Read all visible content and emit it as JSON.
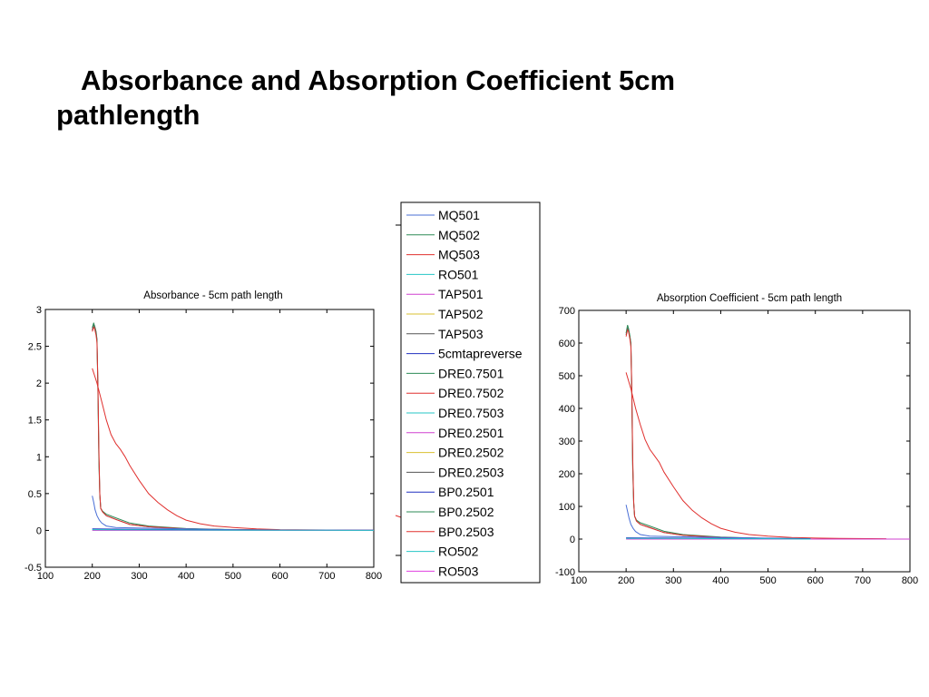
{
  "slide": {
    "title": "Absorbance and Absorption Coefficient 5cm pathlength"
  },
  "legend": {
    "entries": [
      {
        "name": "MQ501",
        "color": "#4a6fd6"
      },
      {
        "name": "MQ502",
        "color": "#2e8b57"
      },
      {
        "name": "MQ503",
        "color": "#e0302e"
      },
      {
        "name": "RO501",
        "color": "#26c6c6"
      },
      {
        "name": "TAP501",
        "color": "#d040d0"
      },
      {
        "name": "TAP502",
        "color": "#d9c030"
      },
      {
        "name": "TAP503",
        "color": "#555555"
      },
      {
        "name": "5cmtapreverse",
        "color": "#2030c0"
      },
      {
        "name": "DRE0.7501",
        "color": "#2e8b57"
      },
      {
        "name": "DRE0.7502",
        "color": "#e0302e"
      },
      {
        "name": "DRE0.7503",
        "color": "#26c6c6"
      },
      {
        "name": "DRE0.2501",
        "color": "#d040d0"
      },
      {
        "name": "DRE0.2502",
        "color": "#d9c030"
      },
      {
        "name": "DRE0.2503",
        "color": "#555555"
      },
      {
        "name": "BP0.2501",
        "color": "#2030c0"
      },
      {
        "name": "BP0.2502",
        "color": "#2e8b57"
      },
      {
        "name": "BP0.2503",
        "color": "#e0302e"
      },
      {
        "name": "RO502",
        "color": "#26c6c6"
      },
      {
        "name": "RO503",
        "color": "#e040e0"
      }
    ]
  },
  "chart_data": [
    {
      "type": "line",
      "title": "Absorbance - 5cm path length",
      "xlabel": "",
      "ylabel": "",
      "xlim": [
        100,
        800
      ],
      "ylim": [
        -0.5,
        3
      ],
      "xticks": [
        "100",
        "200",
        "300",
        "400",
        "500",
        "600",
        "700",
        "800"
      ],
      "yticks": [
        "-0.5",
        "0",
        "0.5",
        "1",
        "1.5",
        "2",
        "2.5",
        "3"
      ],
      "xtick_values": [
        100,
        200,
        300,
        400,
        500,
        600,
        700,
        800
      ],
      "ytick_values": [
        -0.5,
        0,
        0.5,
        1,
        1.5,
        2,
        2.5,
        3
      ],
      "grid": false,
      "series": [
        {
          "color": "#555555",
          "x": [
            200,
            203,
            205,
            208,
            210,
            212,
            214,
            216,
            218,
            222,
            230,
            250,
            280,
            320,
            400,
            500,
            600,
            700,
            800
          ],
          "y": [
            2.72,
            2.8,
            2.78,
            2.7,
            2.6,
            2.0,
            1.0,
            0.5,
            0.3,
            0.25,
            0.2,
            0.15,
            0.08,
            0.05,
            0.02,
            0.01,
            0.005,
            0.002,
            0.0
          ]
        },
        {
          "color": "#2e8b57",
          "x": [
            200,
            203,
            205,
            208,
            210,
            212,
            214,
            216,
            218,
            222,
            230,
            250,
            280,
            320,
            400,
            500,
            600,
            700,
            800
          ],
          "y": [
            2.75,
            2.82,
            2.76,
            2.68,
            2.58,
            1.9,
            0.95,
            0.48,
            0.3,
            0.26,
            0.22,
            0.17,
            0.1,
            0.06,
            0.025,
            0.01,
            0.005,
            0.002,
            0.0
          ]
        },
        {
          "color": "#e0302e",
          "x": [
            200,
            203,
            205,
            208,
            210,
            212,
            214,
            216,
            218,
            222,
            230,
            250,
            280,
            320,
            400,
            500,
            600,
            700,
            800
          ],
          "y": [
            2.7,
            2.76,
            2.74,
            2.65,
            2.55,
            2.0,
            1.1,
            0.5,
            0.3,
            0.25,
            0.2,
            0.15,
            0.08,
            0.05,
            0.02,
            0.01,
            0.005,
            0.002,
            0.0
          ]
        },
        {
          "color": "#e0302e",
          "x": [
            200,
            210,
            220,
            230,
            240,
            250,
            260,
            270,
            280,
            300,
            320,
            340,
            360,
            380,
            400,
            430,
            460,
            500,
            550,
            600,
            700,
            800
          ],
          "y": [
            2.2,
            2.0,
            1.75,
            1.5,
            1.3,
            1.18,
            1.1,
            1.0,
            0.88,
            0.68,
            0.5,
            0.38,
            0.28,
            0.2,
            0.14,
            0.09,
            0.06,
            0.04,
            0.02,
            0.01,
            0.005,
            0.002
          ]
        },
        {
          "color": "#4a6fd6",
          "x": [
            200,
            203,
            206,
            210,
            215,
            220,
            230,
            250,
            280,
            320,
            400,
            500,
            600,
            800
          ],
          "y": [
            0.47,
            0.38,
            0.28,
            0.2,
            0.14,
            0.1,
            0.06,
            0.04,
            0.035,
            0.03,
            0.02,
            0.01,
            0.005,
            0.0
          ]
        },
        {
          "color": "#2030c0",
          "x": [
            200,
            300,
            400,
            500,
            600,
            700,
            800
          ],
          "y": [
            0.02,
            0.015,
            0.01,
            0.005,
            0.003,
            0.002,
            0.001
          ]
        },
        {
          "color": "#d040d0",
          "x": [
            200,
            300,
            400,
            500,
            600,
            700,
            800
          ],
          "y": [
            0.0,
            0.0,
            0.0,
            0.0,
            0.0,
            0.0,
            0.0
          ]
        },
        {
          "color": "#26c6c6",
          "x": [
            200,
            300,
            400,
            500,
            600,
            700,
            800
          ],
          "y": [
            0.01,
            0.008,
            0.005,
            0.003,
            0.002,
            0.001,
            0.0
          ]
        }
      ]
    },
    {
      "type": "line",
      "title": "Absorption Coefficient - 5cm path length",
      "xlabel": "",
      "ylabel": "",
      "xlim": [
        100,
        800
      ],
      "ylim": [
        -100,
        700
      ],
      "xticks": [
        "100",
        "200",
        "300",
        "400",
        "500",
        "600",
        "700",
        "800"
      ],
      "yticks": [
        "-100",
        "0",
        "100",
        "200",
        "300",
        "400",
        "500",
        "600",
        "700"
      ],
      "xtick_values": [
        100,
        200,
        300,
        400,
        500,
        600,
        700,
        800
      ],
      "ytick_values": [
        -100,
        0,
        100,
        200,
        300,
        400,
        500,
        600,
        700
      ],
      "grid": false,
      "series": [
        {
          "color": "#555555",
          "x": [
            200,
            203,
            205,
            208,
            210,
            212,
            214,
            216,
            218,
            222,
            230,
            250,
            280,
            320,
            400,
            500,
            590
          ],
          "y": [
            625,
            645,
            640,
            620,
            600,
            460,
            230,
            110,
            70,
            55,
            45,
            35,
            20,
            12,
            5,
            2,
            1
          ]
        },
        {
          "color": "#2e8b57",
          "x": [
            200,
            203,
            205,
            208,
            210,
            212,
            214,
            216,
            218,
            222,
            230,
            250,
            280,
            320,
            400,
            500,
            590
          ],
          "y": [
            630,
            655,
            645,
            622,
            598,
            440,
            220,
            110,
            70,
            58,
            50,
            40,
            24,
            14,
            6,
            2,
            1
          ]
        },
        {
          "color": "#e0302e",
          "x": [
            200,
            203,
            205,
            208,
            210,
            212,
            214,
            216,
            218,
            222,
            230,
            250,
            280,
            320,
            400,
            500,
            590
          ],
          "y": [
            620,
            640,
            635,
            612,
            590,
            460,
            250,
            115,
            70,
            55,
            45,
            35,
            20,
            12,
            5,
            2,
            1
          ]
        },
        {
          "color": "#e0302e",
          "x": [
            200,
            210,
            220,
            230,
            240,
            250,
            260,
            270,
            280,
            300,
            320,
            340,
            360,
            380,
            400,
            430,
            460,
            500,
            550,
            600,
            650,
            750
          ],
          "y": [
            510,
            460,
            400,
            350,
            305,
            275,
            255,
            235,
            205,
            160,
            118,
            88,
            65,
            47,
            33,
            21,
            14,
            9,
            5,
            3,
            2,
            1
          ]
        },
        {
          "color": "#4a6fd6",
          "x": [
            200,
            203,
            206,
            210,
            215,
            220,
            230,
            250,
            280,
            320,
            400,
            500,
            590
          ],
          "y": [
            105,
            85,
            65,
            45,
            32,
            23,
            14,
            9,
            8,
            7,
            5,
            3,
            1
          ]
        },
        {
          "color": "#2030c0",
          "x": [
            200,
            300,
            400,
            500,
            590
          ],
          "y": [
            4,
            3,
            2,
            1,
            1
          ]
        },
        {
          "color": "#d040d0",
          "x": [
            200,
            300,
            400,
            500,
            600,
            700,
            800
          ],
          "y": [
            0,
            0,
            0,
            0,
            0,
            0,
            0
          ]
        },
        {
          "color": "#26c6c6",
          "x": [
            200,
            300,
            400,
            500,
            590
          ],
          "y": [
            2,
            2,
            1,
            1,
            0
          ]
        }
      ]
    }
  ]
}
